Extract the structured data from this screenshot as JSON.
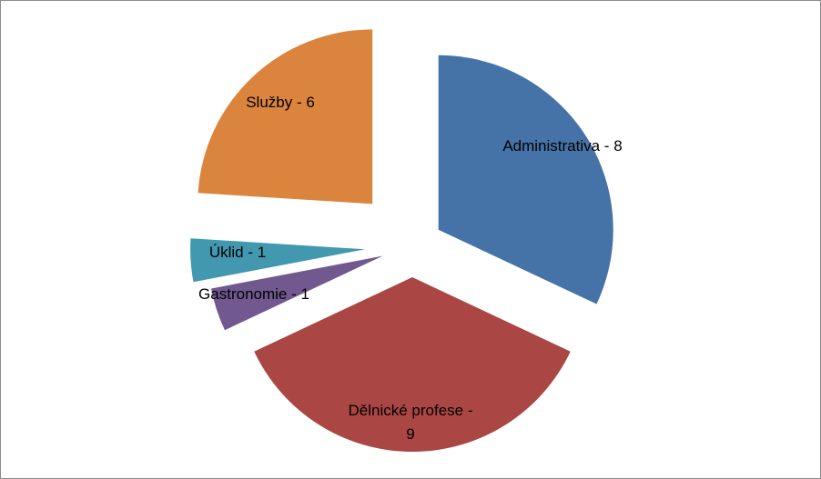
{
  "chart_data": {
    "type": "pie",
    "exploded": true,
    "legend": "none",
    "slices": [
      {
        "label": "Administrativa - 8",
        "category": "Administrativa",
        "value": 8,
        "color": "#4572A7"
      },
      {
        "label": "Dělnické profese - 9",
        "category": "Dělnické profese",
        "value": 9,
        "color": "#AA4643"
      },
      {
        "label": "Gastronomie - 1",
        "category": "Gastronomie",
        "value": 1,
        "color": "#71588F"
      },
      {
        "label": "Úklid - 1",
        "category": "Úklid",
        "value": 1,
        "color": "#4198AF"
      },
      {
        "label": "Služby - 6",
        "category": "Služby",
        "value": 6,
        "color": "#DB843D"
      }
    ]
  }
}
